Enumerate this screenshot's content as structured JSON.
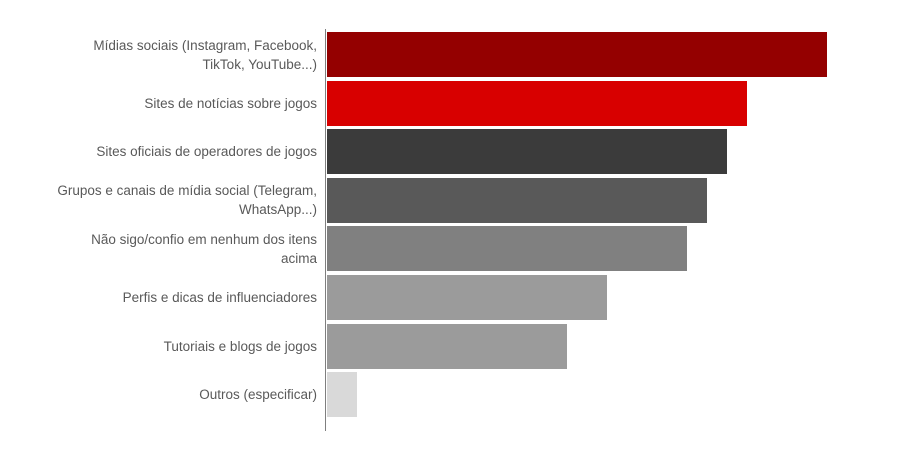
{
  "chart": {
    "accent_dark_red": "#940000",
    "accent_red": "#d80000",
    "axis_line_color": "#7f7f7f",
    "label_color": "#595959",
    "background": "#ffffff"
  },
  "chart_data": {
    "type": "bar",
    "orientation": "horizontal",
    "title": "",
    "xlabel": "",
    "ylabel": "",
    "xlim": [
      0,
      58.6
    ],
    "grid": false,
    "legend": false,
    "unit": "%",
    "categories": [
      "Mídias sociais (Instagram, Facebook, TikTok, YouTube...)",
      "Sites de notícias sobre jogos",
      "Sites oficiais de operadores de jogos",
      "Grupos e canais de mídia social (Telegram, WhatsApp...)",
      "Não sigo/confio em nenhum dos itens acima",
      "Perfis e dicas de influenciadores",
      "Tutoriais e blogs de jogos",
      "Outros (especificar)"
    ],
    "values": [
      50,
      42,
      40,
      38,
      36,
      28,
      24,
      3
    ],
    "bar_colors": [
      "#940000",
      "#d80000",
      "#3b3b3b",
      "#595959",
      "#808080",
      "#9b9b9b",
      "#9b9b9b",
      "#d9d9d9"
    ]
  },
  "display": {
    "label_lines": [
      [
        "Mídias sociais (Instagram, Facebook,",
        "TikTok, YouTube...)"
      ],
      [
        "Sites de notícias sobre jogos"
      ],
      [
        "Sites oficiais de operadores de jogos"
      ],
      [
        "Grupos e canais de mídia social (Telegram,",
        "WhatsApp...)"
      ],
      [
        "Não sigo/confio em nenhum dos itens",
        "acima"
      ],
      [
        "Perfis e dicas de influenciadores"
      ],
      [
        "Tutoriais e blogs de jogos"
      ],
      [
        "Outros (especificar)"
      ]
    ]
  }
}
